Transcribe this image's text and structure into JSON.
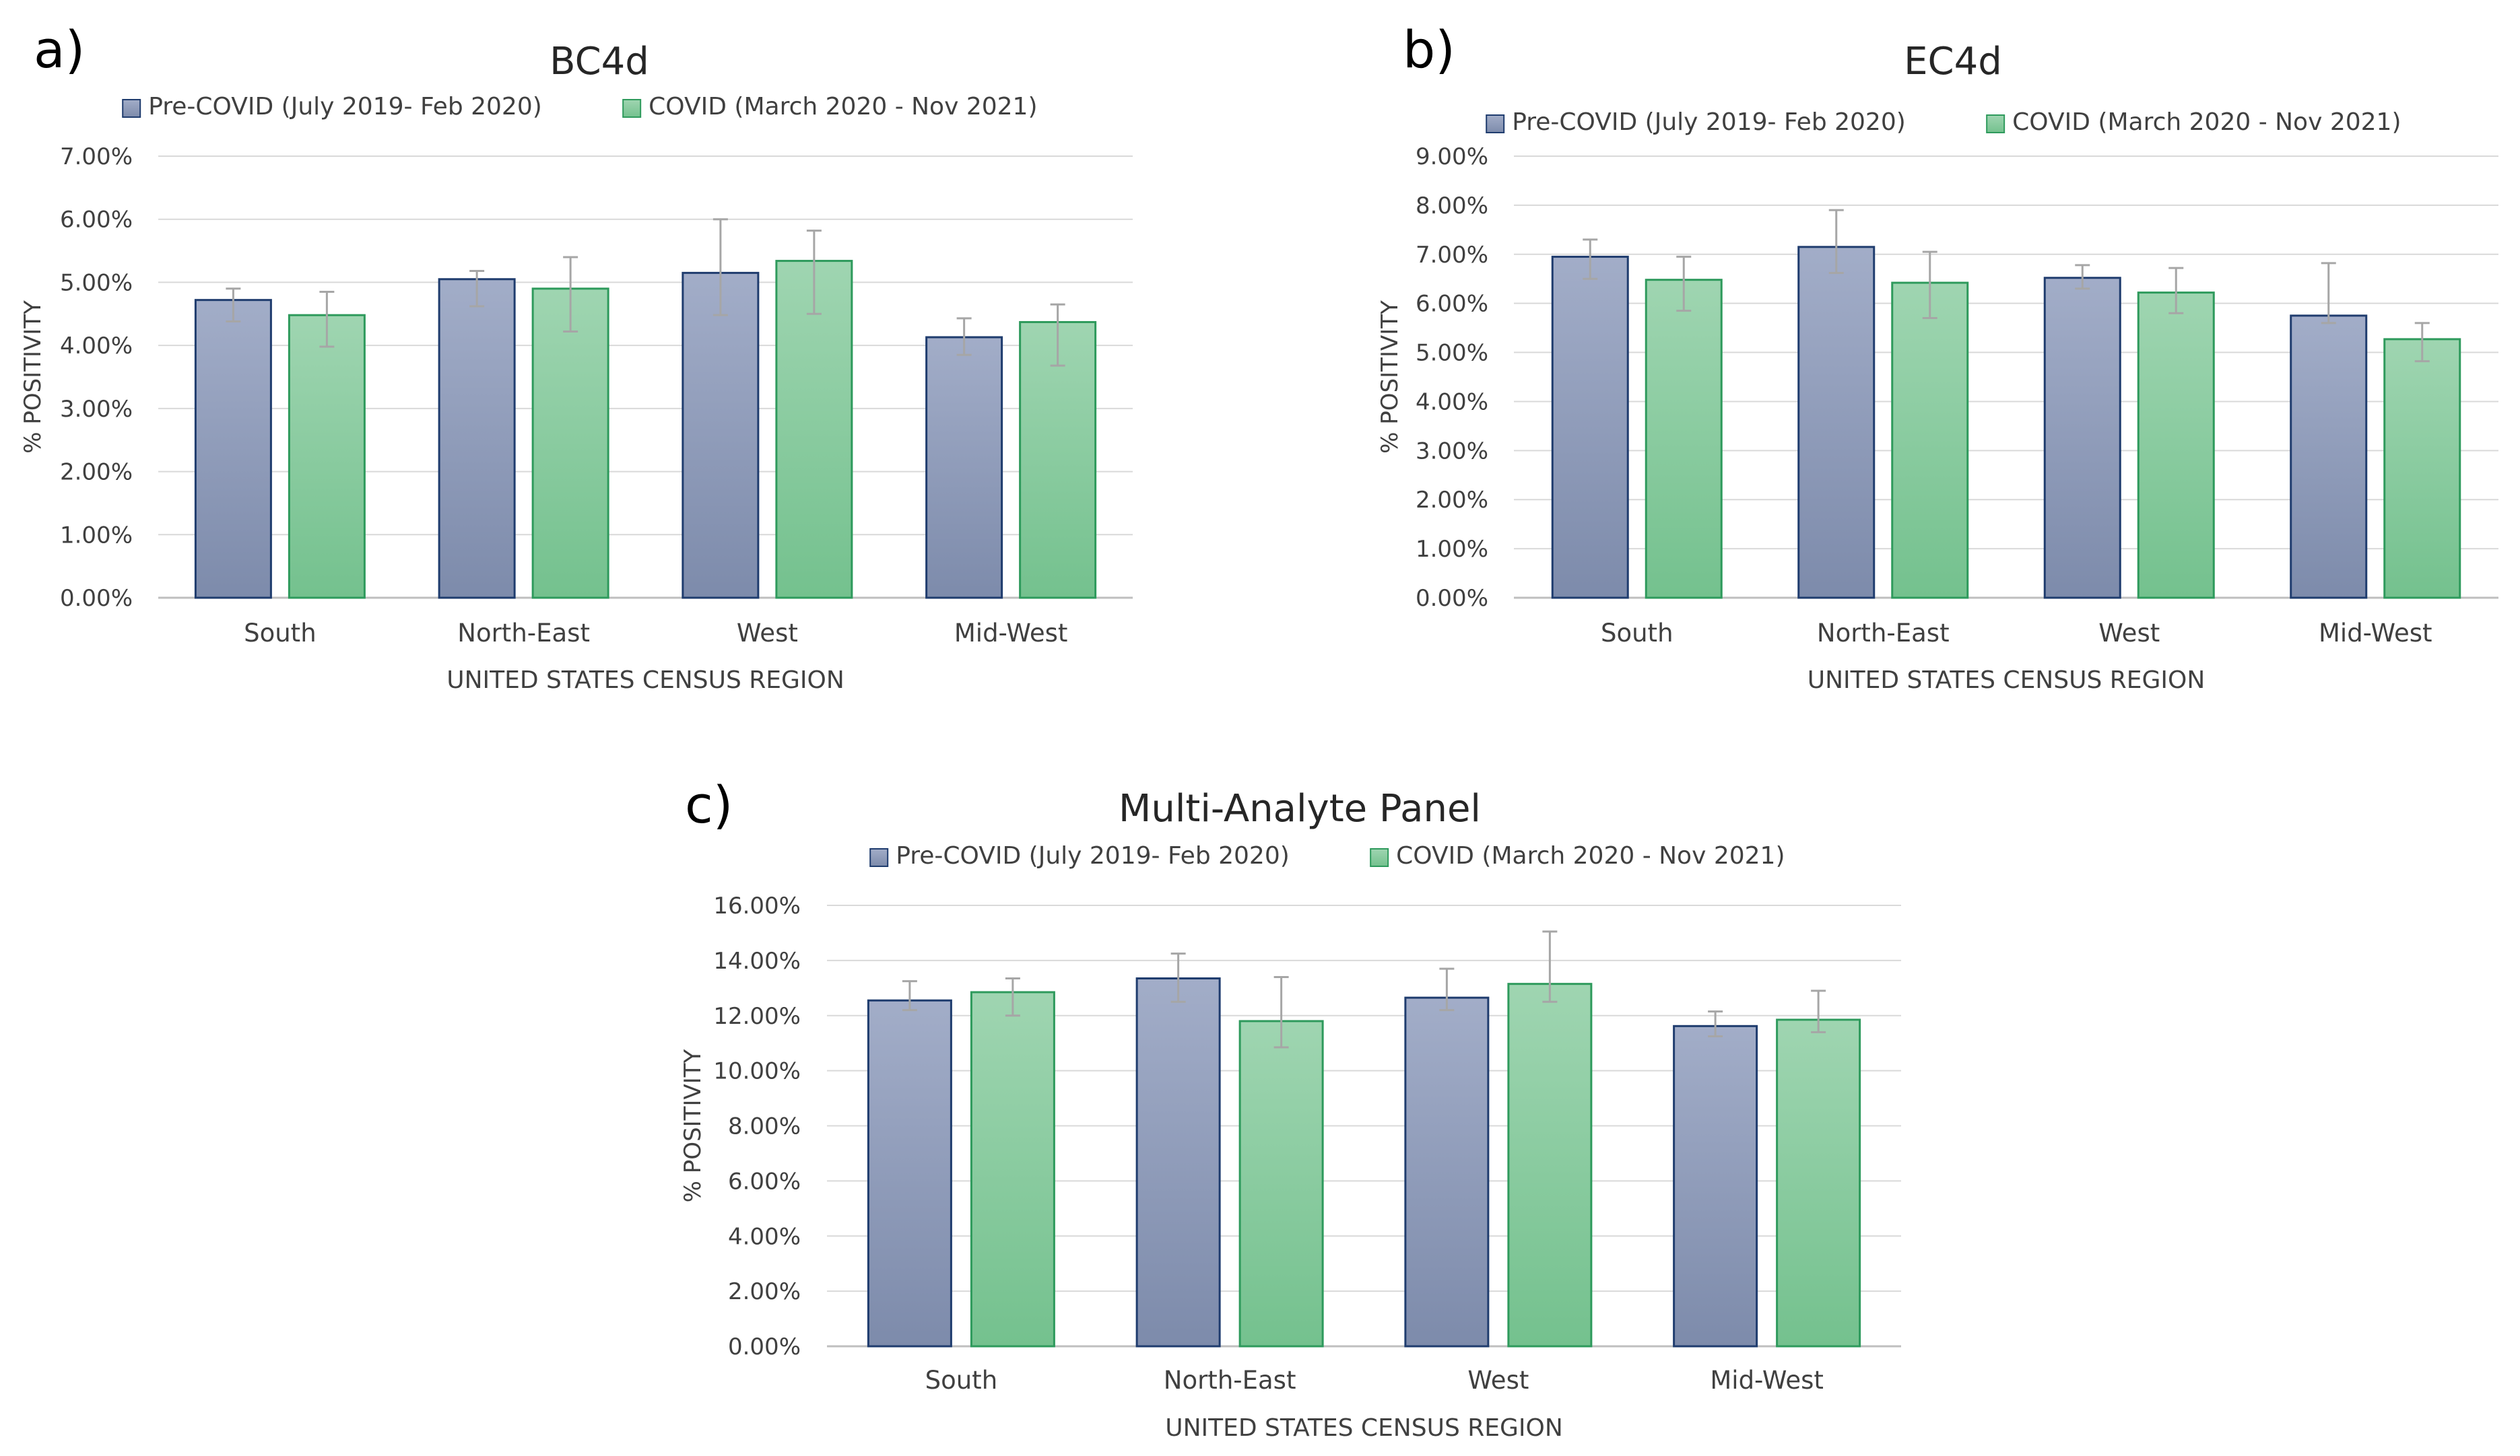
{
  "chart_data": [
    {
      "panel_label": "a)",
      "type": "bar",
      "title": "BC4d",
      "xlabel": "UNITED STATES CENSUS REGION",
      "ylabel": "% POSITIVITY",
      "ylim": [
        0,
        7
      ],
      "ytick_step": 1,
      "ytick_suffix": "%",
      "ytick_decimals": 2,
      "grid": true,
      "legend_position": "top-center",
      "categories": [
        "South",
        "North-East",
        "West",
        "Mid-West"
      ],
      "series": [
        {
          "name": "Pre-COVID (July 2019- Feb 2020)",
          "values": [
            4.72,
            5.05,
            5.15,
            4.13
          ],
          "error_low": [
            4.38,
            4.62,
            4.48,
            3.85
          ],
          "error_high": [
            4.9,
            5.18,
            6.0,
            4.43
          ]
        },
        {
          "name": "COVID (March 2020 - Nov 2021)",
          "values": [
            4.48,
            4.9,
            5.34,
            4.37
          ],
          "error_low": [
            3.98,
            4.22,
            4.5,
            3.68
          ],
          "error_high": [
            4.85,
            5.4,
            5.82,
            4.65
          ]
        }
      ]
    },
    {
      "panel_label": "b)",
      "type": "bar",
      "title": "EC4d",
      "xlabel": "UNITED STATES CENSUS REGION",
      "ylabel": "% POSITIVITY",
      "ylim": [
        0,
        9
      ],
      "ytick_step": 1,
      "ytick_suffix": "%",
      "ytick_decimals": 2,
      "grid": true,
      "legend_position": "top-center",
      "categories": [
        "South",
        "North-East",
        "West",
        "Mid-West"
      ],
      "series": [
        {
          "name": "Pre-COVID (July 2019- Feb 2020)",
          "values": [
            6.95,
            7.15,
            6.52,
            5.75
          ],
          "error_low": [
            6.5,
            6.62,
            6.3,
            5.6
          ],
          "error_high": [
            7.3,
            7.9,
            6.78,
            6.82
          ]
        },
        {
          "name": "COVID (March 2020 - Nov 2021)",
          "values": [
            6.48,
            6.42,
            6.22,
            5.27
          ],
          "error_low": [
            5.85,
            5.7,
            5.8,
            4.82
          ],
          "error_high": [
            6.95,
            7.05,
            6.72,
            5.6
          ]
        }
      ]
    },
    {
      "panel_label": "c)",
      "type": "bar",
      "title": "Multi-Analyte Panel",
      "xlabel": "UNITED STATES CENSUS REGION",
      "ylabel": "% POSITIVITY",
      "ylim": [
        0,
        16
      ],
      "ytick_step": 2,
      "ytick_suffix": "%",
      "ytick_decimals": 2,
      "grid": true,
      "legend_position": "top-center",
      "categories": [
        "South",
        "North-East",
        "West",
        "Mid-West"
      ],
      "series": [
        {
          "name": "Pre-COVID (July 2019- Feb 2020)",
          "values": [
            12.55,
            13.35,
            12.65,
            11.62
          ],
          "error_low": [
            12.2,
            12.5,
            12.2,
            11.25
          ],
          "error_high": [
            13.25,
            14.25,
            13.7,
            12.15
          ]
        },
        {
          "name": "COVID (March 2020 - Nov 2021)",
          "values": [
            12.85,
            11.8,
            13.15,
            11.85
          ],
          "error_low": [
            12.0,
            10.85,
            12.5,
            11.4
          ],
          "error_high": [
            13.35,
            13.4,
            15.05,
            12.9
          ]
        }
      ]
    }
  ],
  "colors": {
    "pre_covid_fill_top": "#a2adc8",
    "pre_covid_fill_bottom": "#7d8bab",
    "pre_covid_border": "#1f3c6e",
    "covid_fill_top": "#9fd5b1",
    "covid_fill_bottom": "#74c18e",
    "covid_border": "#2e9a5c",
    "gridline": "#d9d9d9",
    "error_bar": "#a6a6a6",
    "text": "#404040"
  }
}
